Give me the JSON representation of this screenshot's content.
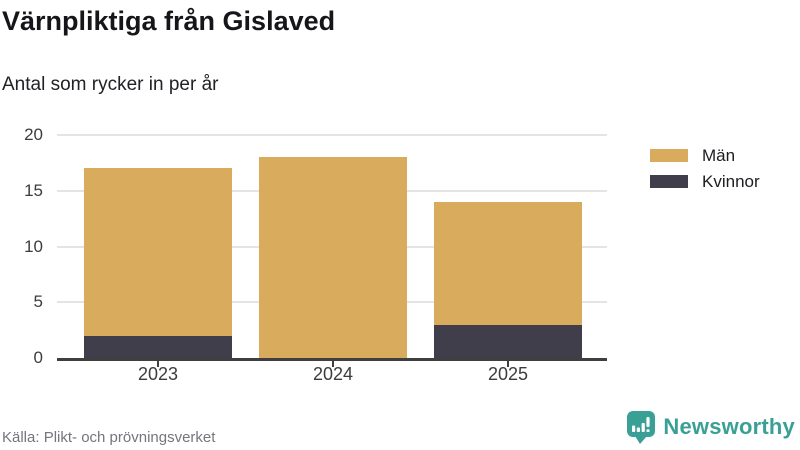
{
  "header": {
    "title": "Värnpliktiga från Gislaved",
    "subtitle": "Antal som rycker in per år"
  },
  "chart_data": {
    "type": "bar",
    "stacked": true,
    "title": "Värnpliktiga från Gislaved",
    "subtitle": "Antal som rycker in per år",
    "categories": [
      "2023",
      "2024",
      "2025"
    ],
    "series": [
      {
        "name": "Män",
        "color": "#d9ab5c",
        "values": [
          15,
          18,
          11
        ]
      },
      {
        "name": "Kvinnor",
        "color": "#413e4c",
        "values": [
          2,
          0,
          3
        ]
      }
    ],
    "totals": [
      17,
      18,
      14
    ],
    "xlabel": "",
    "ylabel": "",
    "ylim": [
      0,
      20
    ],
    "yticks": [
      0,
      5,
      10,
      15,
      20
    ],
    "grid": true,
    "legend_position": "right"
  },
  "footer": {
    "source": "Källa: Plikt- och prövningsverket",
    "brand": "Newsworthy"
  },
  "colors": {
    "men": "#d9ab5c",
    "women": "#413e4c",
    "axis": "#3f3f3f",
    "grid": "#e4e4e4",
    "title_text": "#16161a",
    "tick_label": "#3c3c3c",
    "source_text": "#75757d",
    "brand_teal": "#3aa096"
  }
}
